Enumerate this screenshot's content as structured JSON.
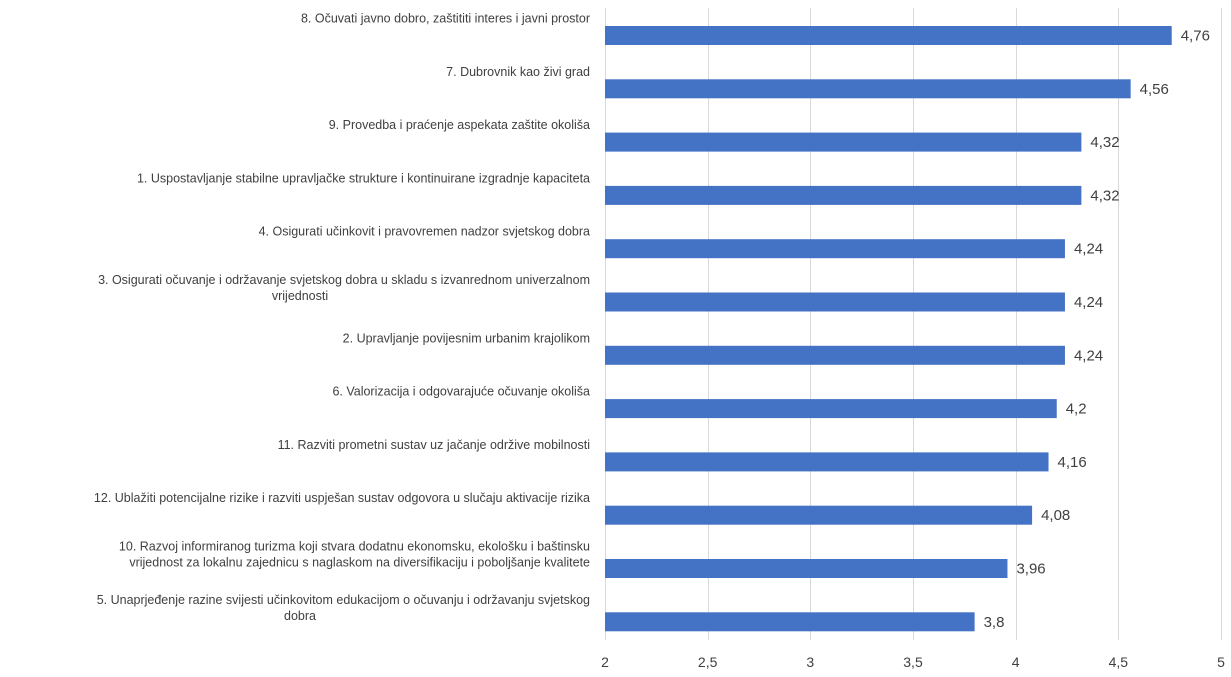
{
  "chart_data": {
    "type": "bar",
    "orientation": "horizontal",
    "categories": [
      "8. Očuvati javno dobro, zaštititi interes i javni prostor",
      "7. Dubrovnik kao živi grad",
      "9. Provedba i praćenje aspekata zaštite okoliša",
      "1. Uspostavljanje stabilne upravljačke strukture i kontinuirane izgradnje kapaciteta",
      "4. Osigurati učinkovit i pravovremen nadzor svjetskog dobra",
      "3. Osigurati očuvanje i održavanje svjetskog dobra u skladu s izvanrednom univerzalnom vrijednosti",
      "2. Upravljanje povijesnim urbanim krajolikom",
      "6. Valorizacija i odgovarajuće očuvanje okoliša",
      "11. Razviti prometni sustav uz jačanje održive mobilnosti",
      "12. Ublažiti potencijalne rizike i razviti uspješan sustav odgovora u slučaju aktivacije rizika",
      "10. Razvoj informiranog turizma koji stvara dodatnu ekonomsku, ekološku i baštinsku vrijednost za lokalnu zajednicu s naglaskom na diversifikaciju i poboljšanje kvalitete",
      "5. Unaprjeđenje razine svijesti učinkovitom edukacijom o očuvanju i održavanju svjetskog dobra"
    ],
    "category_lines": [
      [
        "8. Očuvati javno dobro, zaštititi interes i javni prostor"
      ],
      [
        "7. Dubrovnik kao živi grad"
      ],
      [
        "9. Provedba i praćenje aspekata zaštite okoliša"
      ],
      [
        "1. Uspostavljanje stabilne upravljačke strukture i kontinuirane izgradnje kapaciteta"
      ],
      [
        "4. Osigurati učinkovit i pravovremen nadzor svjetskog dobra"
      ],
      [
        "3. Osigurati očuvanje i održavanje svjetskog dobra u skladu s izvanrednom univerzalnom",
        "vrijednosti"
      ],
      [
        "2. Upravljanje povijesnim urbanim krajolikom"
      ],
      [
        "6. Valorizacija i odgovarajuće očuvanje okoliša"
      ],
      [
        "11. Razviti prometni sustav uz jačanje održive mobilnosti"
      ],
      [
        "12. Ublažiti potencijalne rizike i razviti uspješan sustav odgovora u slučaju aktivacije rizika"
      ],
      [
        "10. Razvoj informiranog turizma koji stvara dodatnu ekonomsku, ekološku i baštinsku",
        "vrijednost za lokalnu zajednicu s naglaskom na diversifikaciju i poboljšanje kvalitete"
      ],
      [
        "5. Unaprjeđenje razine svijesti učinkovitom edukacijom o očuvanju i održavanju svjetskog",
        "dobra"
      ]
    ],
    "values": [
      4.76,
      4.56,
      4.32,
      4.32,
      4.24,
      4.24,
      4.24,
      4.2,
      4.16,
      4.08,
      3.96,
      3.8
    ],
    "value_labels": [
      "4,76",
      "4,56",
      "4,32",
      "4,32",
      "4,24",
      "4,24",
      "4,24",
      "4,2",
      "4,16",
      "4,08",
      "3,96",
      "3,8"
    ],
    "xlim": [
      2,
      5
    ],
    "x_ticks": [
      2,
      2.5,
      3,
      3.5,
      4,
      4.5,
      5
    ],
    "x_tick_labels": [
      "2",
      "2,5",
      "3",
      "3,5",
      "4",
      "4,5",
      "5"
    ],
    "title": "",
    "xlabel": "",
    "ylabel": "",
    "grid": "vertical",
    "legend": "none",
    "bar_color": "#4472C4",
    "grid_color": "#D9D9D9",
    "text_color": "#404040"
  }
}
